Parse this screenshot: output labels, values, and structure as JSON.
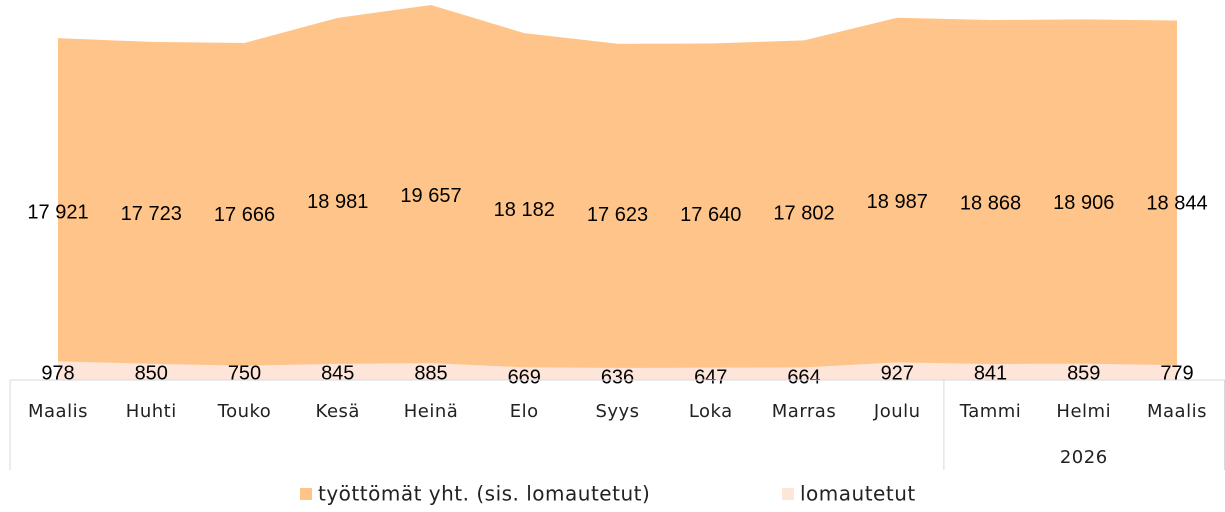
{
  "chart_data": {
    "type": "area",
    "categories": [
      "Maalis",
      "Huhti",
      "Touko",
      "Kesä",
      "Heinä",
      "Elo",
      "Syys",
      "Loka",
      "Marras",
      "Joulu",
      "Tammi",
      "Helmi",
      "Maalis"
    ],
    "x_groups": [
      {
        "label": "2026",
        "first": 10,
        "last": 12
      }
    ],
    "series": [
      {
        "name": "työttömät yht. (sis. lomautetut)",
        "color": "#ffc489",
        "values": [
          17921,
          17723,
          17666,
          18981,
          19657,
          18182,
          17623,
          17640,
          17802,
          18987,
          18868,
          18906,
          18844
        ],
        "value_labels": [
          "17 921",
          "17 723",
          "17 666",
          "18 981",
          "19 657",
          "18 182",
          "17 623",
          "17 640",
          "17 802",
          "18 987",
          "18 868",
          "18 906",
          "18 844"
        ]
      },
      {
        "name": "lomautetut",
        "color": "#fde5da",
        "values": [
          978,
          850,
          750,
          845,
          885,
          669,
          636,
          647,
          664,
          927,
          841,
          859,
          779
        ]
      }
    ],
    "legend": "bottom"
  }
}
